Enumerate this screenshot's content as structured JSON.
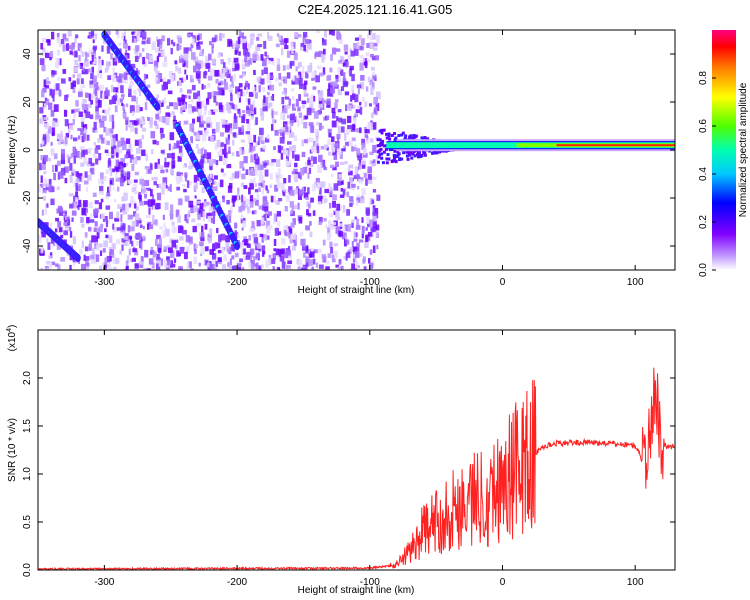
{
  "title": "C2E4.2025.121.16.41.G05",
  "chart_data": [
    {
      "type": "heatmap",
      "xlabel": "Height of straight line (km)",
      "ylabel": "Frequency (Hz)",
      "xlim": [
        -350,
        130
      ],
      "ylim": [
        -50,
        50
      ],
      "xticks": [
        -300,
        -200,
        -100,
        0,
        100
      ],
      "yticks": [
        -40,
        -20,
        0,
        20,
        40
      ],
      "colorbar": {
        "label": "Normalized spectral amplitude",
        "range": [
          0,
          1
        ],
        "ticks": [
          0.0,
          0.2,
          0.4,
          0.6,
          0.8
        ],
        "colors": [
          "#ffffff",
          "#b98cff",
          "#8000ff",
          "#0000ff",
          "#00ffff",
          "#00ff80",
          "#80ff00",
          "#ffff00",
          "#ff8000",
          "#ff0000",
          "#ff0080"
        ]
      },
      "features": {
        "noise_region_x": [
          -350,
          -95
        ],
        "tone_frequency": 2,
        "tone_start_x": -95,
        "streak_1": {
          "x": [
            -300,
            -260
          ],
          "y": [
            48,
            18
          ]
        },
        "streak_2": {
          "x": [
            -245,
            -200
          ],
          "y": [
            10,
            -40
          ]
        },
        "streak_3": {
          "x": [
            -350,
            -320
          ],
          "y": [
            -30,
            -45
          ]
        }
      }
    },
    {
      "type": "line",
      "xlabel": "Height of straight line (km)",
      "ylabel": "SNR (10 * v/v)",
      "y_multiplier": "(x10",
      "y_exponent": "4",
      "xlim": [
        -350,
        130
      ],
      "ylim": [
        0,
        2.5
      ],
      "xticks": [
        -300,
        -200,
        -100,
        0,
        100
      ],
      "yticks": [
        0.0,
        0.5,
        1.0,
        1.5,
        2.0
      ],
      "series": [
        {
          "color": "#ff2020",
          "x": [
            -350,
            -100,
            -80,
            -70,
            -60,
            -50,
            -40,
            -30,
            -20,
            -10,
            0,
            10,
            20,
            30,
            40,
            60,
            80,
            100,
            105,
            110,
            115,
            120,
            130
          ],
          "y": [
            0.01,
            0.02,
            0.05,
            0.2,
            0.4,
            0.5,
            0.6,
            0.7,
            0.75,
            0.8,
            0.9,
            1.05,
            1.15,
            1.28,
            1.32,
            1.33,
            1.32,
            1.3,
            1.15,
            1.25,
            1.9,
            1.3,
            1.28
          ]
        }
      ]
    }
  ]
}
